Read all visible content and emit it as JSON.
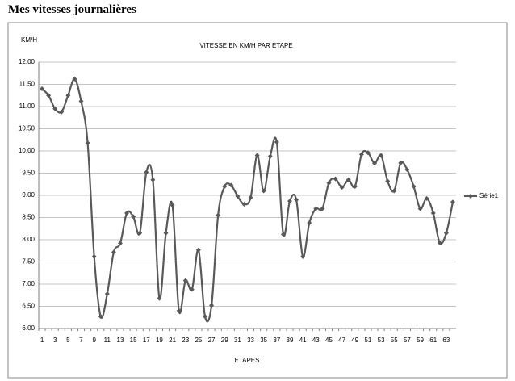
{
  "heading": "Mes vitesses journalières",
  "chart_data": {
    "type": "line",
    "title": "VITESSE EN KM/H PAR ETAPE",
    "y_label": "KM/H",
    "x_label": "ETAPES",
    "categories": [
      1,
      null,
      3,
      null,
      5,
      null,
      7,
      null,
      9,
      null,
      11,
      null,
      13,
      null,
      15,
      null,
      17,
      null,
      19,
      null,
      21,
      null,
      23,
      null,
      25,
      null,
      27,
      null,
      29,
      null,
      31,
      null,
      33,
      null,
      35,
      null,
      37,
      null,
      39,
      null,
      41,
      null,
      43,
      null,
      45,
      null,
      47,
      null,
      49,
      null,
      51,
      null,
      53,
      null,
      55,
      null,
      57,
      null,
      59,
      null,
      61,
      null,
      63,
      null
    ],
    "series": [
      {
        "name": "Série1",
        "color": "#595959",
        "values": [
          11.4,
          11.25,
          10.95,
          10.88,
          11.25,
          11.62,
          11.12,
          10.18,
          7.62,
          6.27,
          6.78,
          7.72,
          7.92,
          8.6,
          8.52,
          8.15,
          9.52,
          9.35,
          6.68,
          8.15,
          8.78,
          6.4,
          7.08,
          6.88,
          7.77,
          6.27,
          6.52,
          8.55,
          9.2,
          9.23,
          8.98,
          8.8,
          8.95,
          9.9,
          9.1,
          9.88,
          10.2,
          8.12,
          8.87,
          8.9,
          7.62,
          8.38,
          8.7,
          8.7,
          9.28,
          9.37,
          9.18,
          9.35,
          9.2,
          9.92,
          9.96,
          9.72,
          9.9,
          9.32,
          9.1,
          9.73,
          9.58,
          9.2,
          8.7,
          8.93,
          8.6,
          7.93,
          8.15,
          8.85
        ]
      }
    ],
    "ylim": [
      6,
      12
    ],
    "yticks": [
      {
        "value": 6,
        "label": "6.00"
      },
      {
        "value": 6.5,
        "label": "6.50"
      },
      {
        "value": 7,
        "label": "7.00"
      },
      {
        "value": 7.5,
        "label": "7.50"
      },
      {
        "value": 8,
        "label": "8.00"
      },
      {
        "value": 8.5,
        "label": "8.50"
      },
      {
        "value": 9,
        "label": "9.00"
      },
      {
        "value": 9.5,
        "label": "9.50"
      },
      {
        "value": 10,
        "label": "10.00"
      },
      {
        "value": 10.5,
        "label": "10.50"
      },
      {
        "value": 11,
        "label": "11.00"
      },
      {
        "value": 11.5,
        "label": "11.50"
      },
      {
        "value": 12,
        "label": "12.00"
      }
    ],
    "grid": true,
    "legend": "right"
  }
}
